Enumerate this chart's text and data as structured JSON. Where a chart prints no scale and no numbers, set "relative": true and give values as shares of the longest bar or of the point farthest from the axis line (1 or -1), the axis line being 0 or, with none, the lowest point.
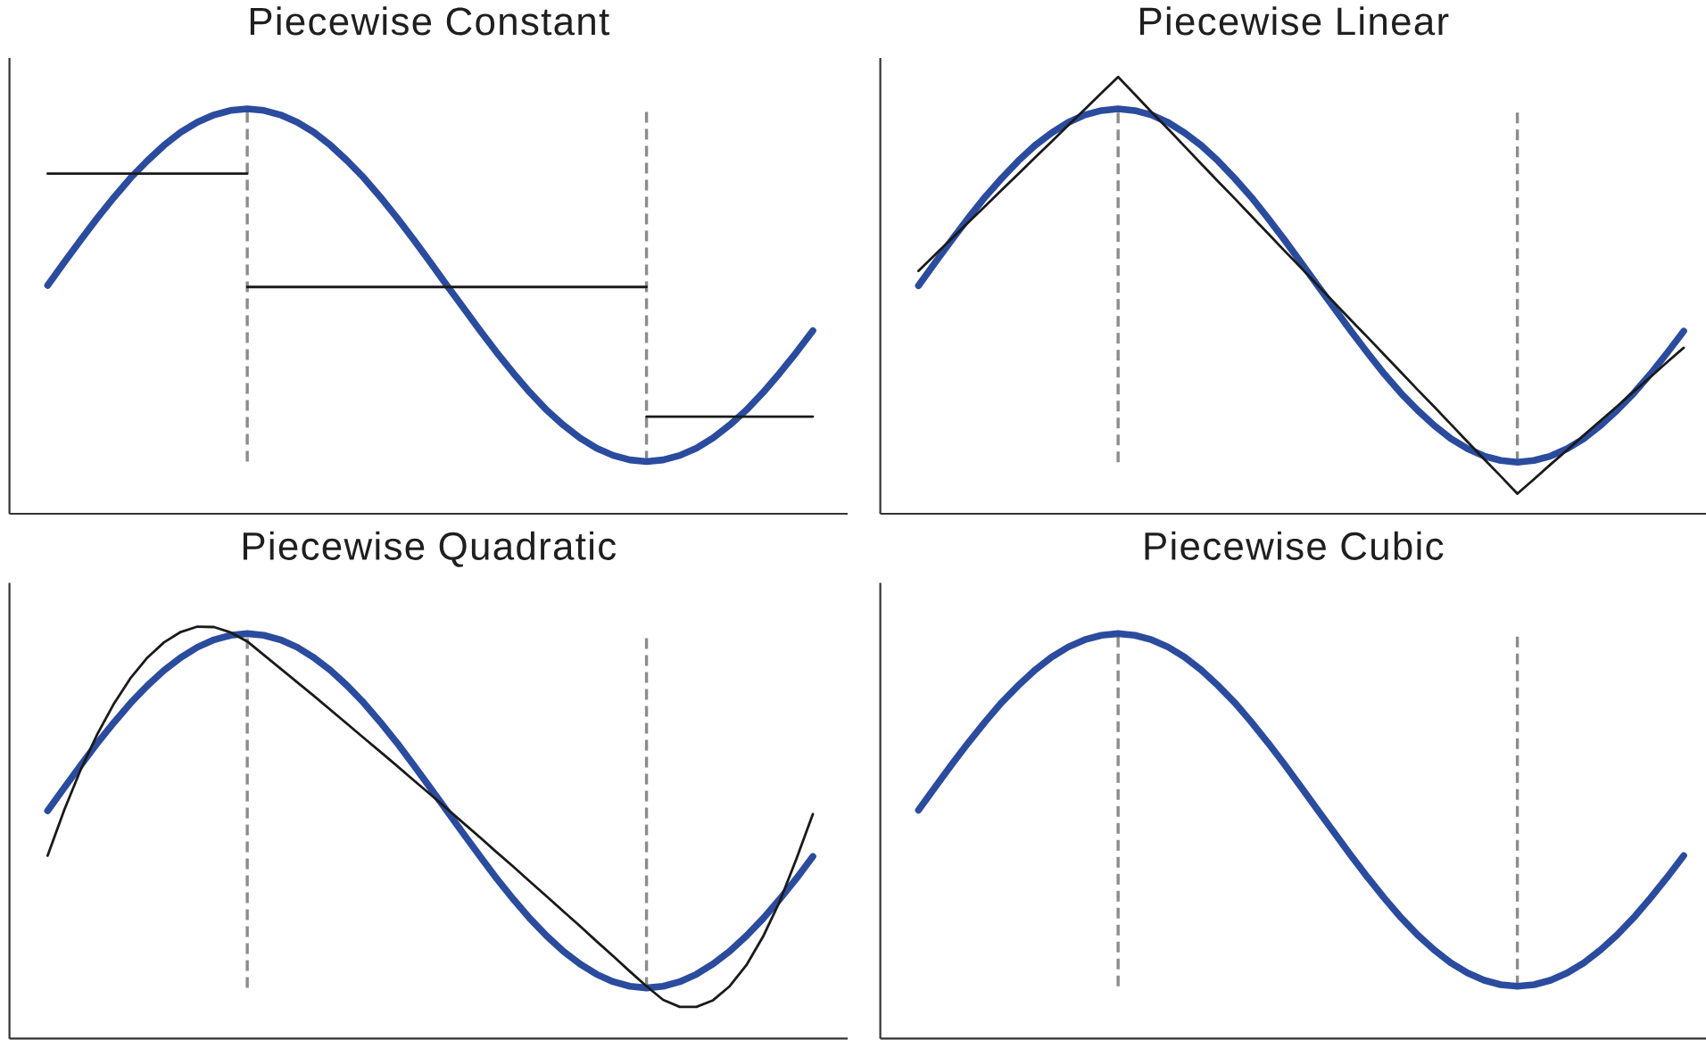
{
  "chart_data": [
    {
      "type": "line",
      "title": "Piecewise Constant",
      "relative": true,
      "categories": [
        null,
        null,
        null,
        null,
        null,
        null,
        null,
        null,
        null,
        null,
        null,
        null,
        null,
        null,
        null,
        null,
        null,
        null,
        null,
        null,
        null,
        null,
        null,
        null,
        null,
        null,
        null,
        null,
        null,
        null,
        null,
        null,
        null,
        null,
        null,
        null,
        null,
        null,
        null,
        null,
        null,
        null,
        null,
        null,
        null,
        null,
        null
      ],
      "series": [
        {
          "color": "#2b4c9e",
          "values": [
            0.564,
            0.621,
            0.677,
            0.731,
            0.782,
            0.83,
            0.872,
            0.91,
            0.942,
            0.967,
            0.985,
            0.996,
            1.0,
            0.996,
            0.985,
            0.967,
            0.942,
            0.91,
            0.872,
            0.83,
            0.782,
            0.731,
            0.677,
            0.621,
            0.564,
            0.508,
            0.452,
            0.398,
            0.347,
            0.299,
            0.256,
            0.219,
            0.187,
            0.162,
            0.144,
            0.133,
            0.129,
            0.133,
            0.144,
            0.162,
            0.187,
            0.219,
            0.256,
            0.299,
            0.347,
            0.398,
            0.452
          ]
        },
        {
          "color": "#1a1a1a",
          "values": [
            0.84,
            0.84,
            0.84,
            0.84,
            0.84,
            0.84,
            0.84,
            0.84,
            0.84,
            0.84,
            0.84,
            0.84,
            0.84,
            null,
            null,
            null,
            null,
            null,
            null,
            null,
            null,
            null,
            null,
            null,
            null,
            null,
            null,
            null,
            null,
            null,
            null,
            null,
            null,
            null,
            null,
            null,
            null,
            null,
            null,
            null,
            null,
            null,
            null,
            null,
            null,
            null,
            null
          ]
        },
        {
          "color": "#1a1a1a",
          "values": [
            null,
            null,
            null,
            null,
            null,
            null,
            null,
            null,
            null,
            null,
            null,
            null,
            0.56,
            0.56,
            0.56,
            0.56,
            0.56,
            0.56,
            0.56,
            0.56,
            0.56,
            0.56,
            0.56,
            0.56,
            0.56,
            0.56,
            0.56,
            0.56,
            0.56,
            0.56,
            0.56,
            0.56,
            0.56,
            0.56,
            0.56,
            0.56,
            0.56,
            null,
            null,
            null,
            null,
            null,
            null,
            null,
            null,
            null,
            null
          ]
        },
        {
          "color": "#1a1a1a",
          "values": [
            null,
            null,
            null,
            null,
            null,
            null,
            null,
            null,
            null,
            null,
            null,
            null,
            null,
            null,
            null,
            null,
            null,
            null,
            null,
            null,
            null,
            null,
            null,
            null,
            null,
            null,
            null,
            null,
            null,
            null,
            null,
            null,
            null,
            null,
            null,
            null,
            0.24,
            0.24,
            0.24,
            0.24,
            0.24,
            0.24,
            0.24,
            0.24,
            0.24,
            0.24,
            0.24
          ]
        }
      ]
    },
    {
      "type": "line",
      "title": "Piecewise Linear",
      "relative": true,
      "categories": [
        null,
        null,
        null,
        null,
        null,
        null,
        null,
        null,
        null,
        null,
        null,
        null,
        null,
        null,
        null,
        null,
        null,
        null,
        null,
        null,
        null,
        null,
        null,
        null,
        null,
        null,
        null,
        null,
        null,
        null,
        null,
        null,
        null,
        null,
        null,
        null,
        null,
        null,
        null,
        null,
        null,
        null,
        null,
        null,
        null,
        null,
        null
      ],
      "series": [
        {
          "color": "#2b4c9e",
          "values": [
            0.522,
            0.575,
            0.627,
            0.677,
            0.725,
            0.768,
            0.808,
            0.843,
            0.872,
            0.896,
            0.913,
            0.923,
            0.927,
            0.923,
            0.913,
            0.896,
            0.872,
            0.843,
            0.808,
            0.768,
            0.725,
            0.677,
            0.627,
            0.575,
            0.522,
            0.47,
            0.418,
            0.368,
            0.32,
            0.276,
            0.237,
            0.202,
            0.172,
            0.149,
            0.132,
            0.122,
            0.118,
            0.122,
            0.132,
            0.149,
            0.172,
            0.202,
            0.237,
            0.276,
            0.32,
            0.368,
            0.418
          ]
        },
        {
          "color": "#1a1a1a",
          "values": [
            0.556,
            0.593,
            0.63,
            0.667,
            0.704,
            0.741,
            0.778,
            0.815,
            0.852,
            0.889,
            0.926,
            0.963,
            1.0,
            0.96,
            0.92,
            0.881,
            0.841,
            0.801,
            0.761,
            0.722,
            0.682,
            0.642,
            0.602,
            0.563,
            0.523,
            0.483,
            0.443,
            0.404,
            0.364,
            0.324,
            0.284,
            0.245,
            0.205,
            0.165,
            0.125,
            0.086,
            0.046,
            0.079,
            0.113,
            0.146,
            0.18,
            0.213,
            0.246,
            0.28,
            0.313,
            0.347,
            0.38
          ]
        }
      ]
    },
    {
      "type": "line",
      "title": "Piecewise Quadratic",
      "relative": true,
      "categories": [
        null,
        null,
        null,
        null,
        null,
        null,
        null,
        null,
        null,
        null,
        null,
        null,
        null,
        null,
        null,
        null,
        null,
        null,
        null,
        null,
        null,
        null,
        null,
        null,
        null,
        null,
        null,
        null,
        null,
        null,
        null,
        null,
        null,
        null,
        null,
        null,
        null,
        null,
        null,
        null,
        null,
        null,
        null,
        null,
        null,
        null,
        null
      ],
      "series": [
        {
          "color": "#2b4c9e",
          "values": [
            0.553,
            0.609,
            0.664,
            0.718,
            0.768,
            0.815,
            0.857,
            0.894,
            0.925,
            0.95,
            0.968,
            0.979,
            0.983,
            0.979,
            0.968,
            0.95,
            0.925,
            0.894,
            0.857,
            0.815,
            0.768,
            0.718,
            0.664,
            0.609,
            0.553,
            0.497,
            0.442,
            0.388,
            0.338,
            0.291,
            0.249,
            0.212,
            0.181,
            0.156,
            0.138,
            0.127,
            0.123,
            0.127,
            0.138,
            0.156,
            0.181,
            0.212,
            0.249,
            0.291,
            0.338,
            0.388,
            0.442
          ]
        },
        {
          "color": "#1a1a1a",
          "values": [
            0.444,
            0.555,
            0.654,
            0.74,
            0.814,
            0.876,
            0.925,
            0.962,
            0.987,
            1.0,
            0.999,
            0.986,
            0.964,
            0.931,
            0.898,
            0.865,
            0.832,
            0.798,
            0.764,
            0.73,
            0.696,
            0.662,
            0.627,
            0.593,
            0.558,
            0.523,
            0.488,
            0.452,
            0.417,
            0.381,
            0.345,
            0.309,
            0.273,
            0.236,
            0.2,
            0.163,
            0.127,
            0.094,
            0.077,
            0.077,
            0.093,
            0.127,
            0.178,
            0.247,
            0.332,
            0.435,
            0.545
          ]
        }
      ]
    },
    {
      "type": "line",
      "title": "Piecewise Cubic",
      "relative": true,
      "categories": [
        null,
        null,
        null,
        null,
        null,
        null,
        null,
        null,
        null,
        null,
        null,
        null,
        null,
        null,
        null,
        null,
        null,
        null,
        null,
        null,
        null,
        null,
        null,
        null,
        null,
        null,
        null,
        null,
        null,
        null,
        null,
        null,
        null,
        null,
        null,
        null,
        null,
        null,
        null,
        null,
        null,
        null,
        null,
        null,
        null,
        null,
        null
      ],
      "series": [
        {
          "color": "#2b4c9e",
          "values": [
            0.564,
            0.621,
            0.677,
            0.731,
            0.782,
            0.83,
            0.872,
            0.91,
            0.942,
            0.967,
            0.985,
            0.996,
            1.0,
            0.996,
            0.985,
            0.967,
            0.942,
            0.91,
            0.872,
            0.83,
            0.782,
            0.731,
            0.677,
            0.621,
            0.564,
            0.508,
            0.452,
            0.398,
            0.347,
            0.299,
            0.256,
            0.219,
            0.187,
            0.162,
            0.144,
            0.133,
            0.129,
            0.133,
            0.144,
            0.162,
            0.187,
            0.219,
            0.256,
            0.299,
            0.347,
            0.398,
            0.452
          ]
        }
      ]
    }
  ]
}
